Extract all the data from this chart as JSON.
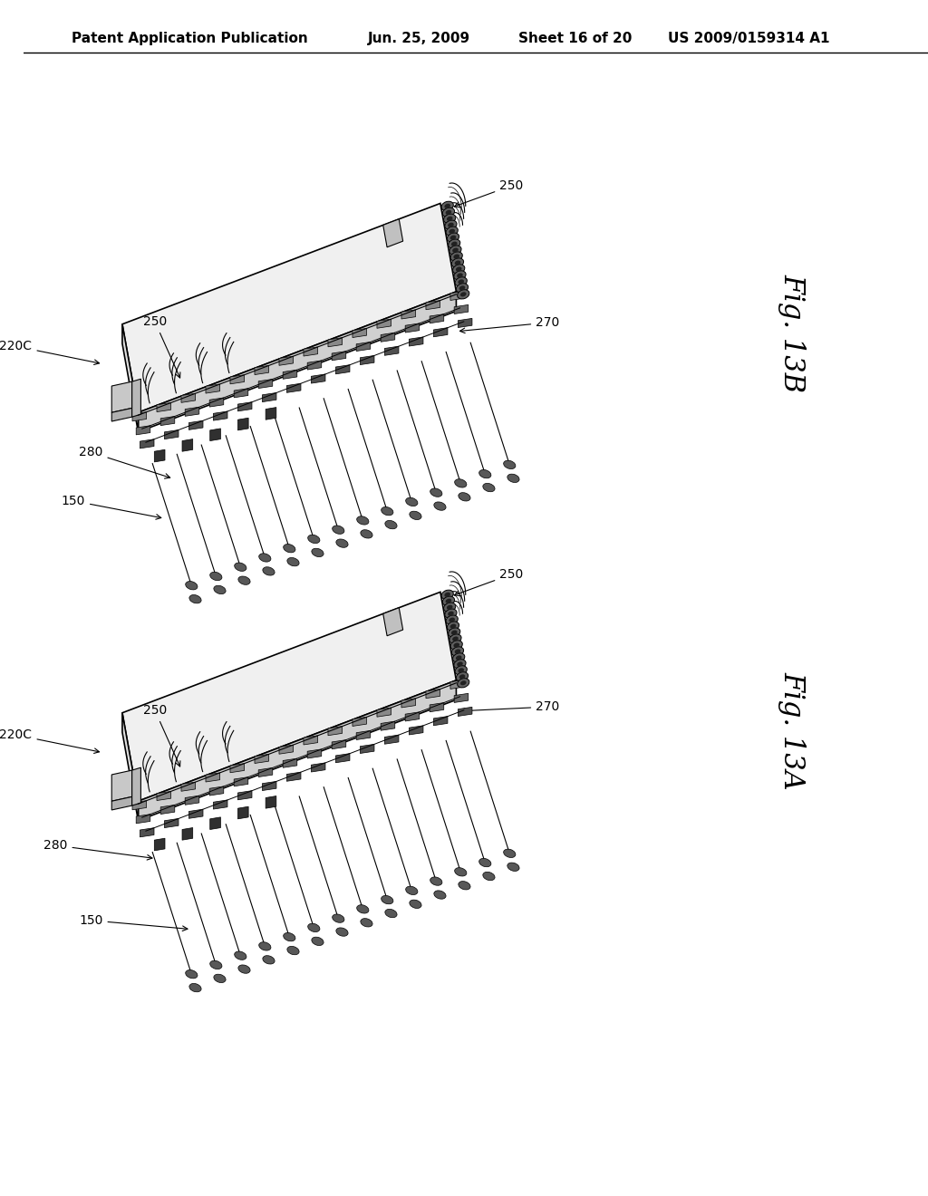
{
  "page_bg": "#ffffff",
  "header_text": "Patent Application Publication",
  "header_date": "Jun. 25, 2009",
  "header_sheet": "Sheet 16 of 20",
  "header_patent": "US 2009/0159314 A1",
  "header_fontsize": 11,
  "fig_label_13B": "Fig. 13B",
  "fig_label_13A": "Fig. 13A",
  "fig_label_fontsize": 22,
  "ref_fontsize": 10,
  "line_color": "#000000"
}
